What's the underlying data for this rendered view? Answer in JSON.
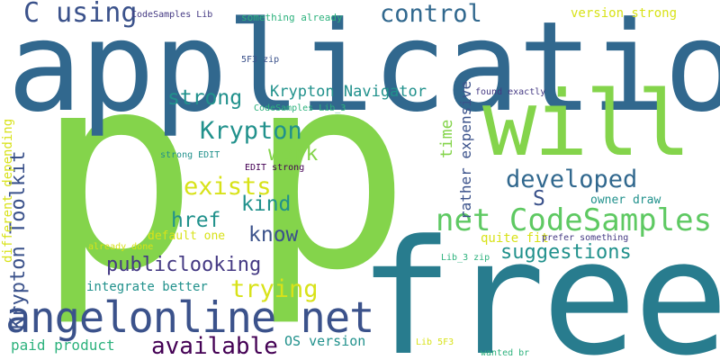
{
  "colors": {
    "background": "#ffffff",
    "lime": "#84d44b",
    "green": "#5ec962",
    "teal": "#21918c",
    "teal_dark": "#287c8e",
    "blue": "#3b528b",
    "steel": "#31688e",
    "navy": "#443983",
    "purple": "#440154",
    "yellow": "#d8e219",
    "sea": "#2db27d"
  },
  "words": {
    "p_left": "p",
    "p_right": "p",
    "application": "application",
    "free": "free",
    "will": "will",
    "angelonline_net": "angelonline net",
    "net_codesamples": "net CodeSamples",
    "krypton_toolkit": "Krypton Toolkit",
    "c_using": "C using",
    "control": "control",
    "krypton_navigator": "Krypton Navigator",
    "strong": "strong",
    "krypton": "Krypton",
    "work": "work",
    "exists": "exists",
    "developed": "developed",
    "kind": "kind",
    "s": "S",
    "href": "href",
    "know": "know",
    "publiclooking": "publiclooking",
    "suggestions": "suggestions",
    "trying": "trying",
    "available": "available",
    "paid_product": "paid product",
    "os_version": "OS version",
    "integrate_better": "integrate better",
    "default_one": "default one",
    "quite_fit": "quite fit",
    "owner_draw": "owner draw",
    "time": "time",
    "rather_expensive": "rather expensive",
    "different_depending": "different depending",
    "version_strong": "version strong",
    "codesamples_lib": "CodeSamples Lib",
    "something_already": "something already",
    "5f3_zip": "5F3 zip",
    "found_exactly": "found exactly",
    "codesamples_lib_3": "CodeSamples Lib_3",
    "strong_edit": "strong EDIT",
    "edit_strong": "EDIT strong",
    "already_done": "already done",
    "prefer_something": "prefer something",
    "lib_3_zip": "Lib_3 zip",
    "lib_5f3": "Lib 5F3",
    "wanted_br": "wanted br"
  }
}
